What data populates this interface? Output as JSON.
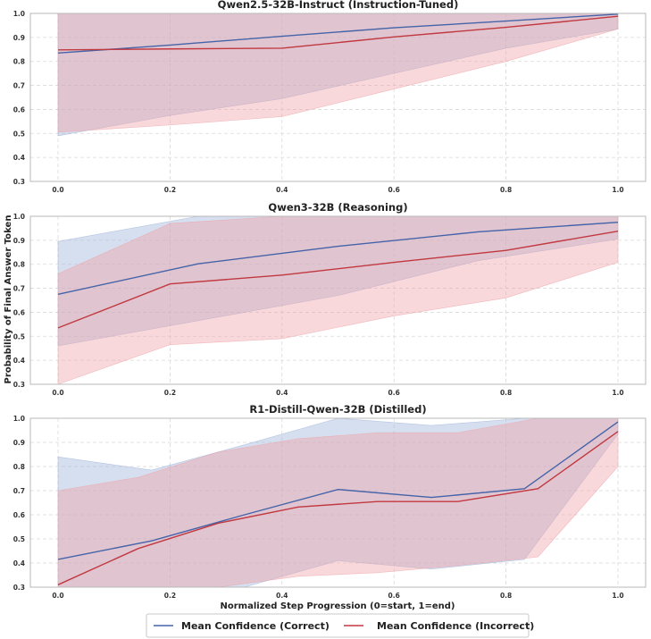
{
  "chart_data": {
    "type": "line",
    "ylabel": "Probability of Final Answer Token",
    "xlabel": "Normalized Step Progression (0=start, 1=end)",
    "xlim": [
      0,
      1
    ],
    "ylim": [
      0.3,
      1.0
    ],
    "xticks": [
      "0.0",
      "0.2",
      "0.4",
      "0.6",
      "0.8",
      "1.0"
    ],
    "xtick_values": [
      0,
      0.2,
      0.4,
      0.6,
      0.8,
      1.0
    ],
    "yticks": [
      "0.3",
      "0.4",
      "0.5",
      "0.6",
      "0.7",
      "0.8",
      "0.9",
      "1.0"
    ],
    "ytick_values": [
      0.3,
      0.4,
      0.5,
      0.6,
      0.7,
      0.8,
      0.9,
      1.0
    ],
    "legend": {
      "placement": "bottom-center",
      "entries": [
        "Mean Confidence (Correct)",
        "Mean Confidence (Incorrect)"
      ]
    },
    "colors": {
      "correct": "#4563a8",
      "incorrect": "#c1383f",
      "correct_band": "#9db2d9",
      "incorrect_band": "#efa3a6"
    },
    "panels": [
      {
        "title": "Qwen2.5-32B-Instruct (Instruction-Tuned)",
        "series": [
          {
            "name": "Mean Confidence (Correct)",
            "x": [
              0,
              0.2,
              0.4,
              0.6,
              0.8,
              1.0
            ],
            "y": [
              0.835,
              0.868,
              0.905,
              0.94,
              0.968,
              0.997
            ],
            "upper": [
              1.0,
              1.0,
              1.0,
              1.0,
              1.0,
              1.0
            ],
            "lower": [
              0.49,
              0.575,
              0.645,
              0.75,
              0.855,
              0.935
            ]
          },
          {
            "name": "Mean Confidence (Incorrect)",
            "x": [
              0,
              0.2,
              0.4,
              0.6,
              0.8,
              1.0
            ],
            "y": [
              0.848,
              0.852,
              0.855,
              0.902,
              0.942,
              0.988
            ],
            "upper": [
              1.0,
              1.0,
              1.0,
              1.0,
              1.0,
              1.0
            ],
            "lower": [
              0.505,
              0.535,
              0.57,
              0.685,
              0.8,
              0.935
            ]
          }
        ]
      },
      {
        "title": "Qwen3-32B (Reasoning)",
        "series": [
          {
            "name": "Mean Confidence (Correct)",
            "x": [
              0,
              0.25,
              0.5,
              0.75,
              1.0
            ],
            "y": [
              0.675,
              0.802,
              0.875,
              0.935,
              0.975
            ],
            "upper": [
              0.895,
              1.0,
              1.0,
              1.0,
              1.0
            ],
            "lower": [
              0.46,
              0.565,
              0.67,
              0.815,
              0.905
            ]
          },
          {
            "name": "Mean Confidence (Incorrect)",
            "x": [
              0,
              0.2,
              0.4,
              0.6,
              0.8,
              1.0
            ],
            "y": [
              0.535,
              0.718,
              0.755,
              0.808,
              0.858,
              0.938
            ],
            "upper": [
              0.76,
              0.97,
              1.0,
              1.0,
              1.0,
              1.0
            ],
            "lower": [
              0.3,
              0.465,
              0.49,
              0.585,
              0.66,
              0.808
            ]
          }
        ]
      },
      {
        "title": "R1-Distill-Qwen-32B (Distilled)",
        "series": [
          {
            "name": "Mean Confidence (Correct)",
            "x": [
              0,
              0.167,
              0.333,
              0.5,
              0.667,
              0.833,
              1.0
            ],
            "y": [
              0.415,
              0.492,
              0.6,
              0.705,
              0.672,
              0.708,
              0.985
            ],
            "upper": [
              0.84,
              0.785,
              0.89,
              1.0,
              0.97,
              1.0,
              1.0
            ],
            "lower": [
              0.3,
              0.3,
              0.3,
              0.41,
              0.375,
              0.415,
              0.935
            ]
          },
          {
            "name": "Mean Confidence (Incorrect)",
            "x": [
              0,
              0.143,
              0.286,
              0.429,
              0.571,
              0.714,
              0.857,
              1.0
            ],
            "y": [
              0.31,
              0.46,
              0.565,
              0.632,
              0.655,
              0.655,
              0.708,
              0.945
            ],
            "upper": [
              0.7,
              0.755,
              0.86,
              0.915,
              0.94,
              0.94,
              1.0,
              1.0
            ],
            "lower": [
              0.3,
              0.3,
              0.3,
              0.345,
              0.36,
              0.39,
              0.425,
              0.8
            ]
          }
        ]
      }
    ]
  }
}
